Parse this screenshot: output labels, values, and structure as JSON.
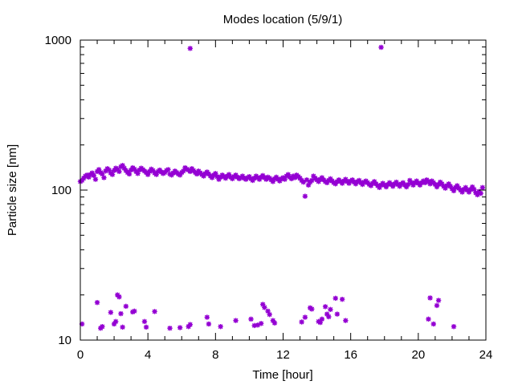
{
  "chart_data": {
    "type": "scatter",
    "title": "Modes location (5/9/1)",
    "xlabel": "Time [hour]",
    "ylabel": "Particle size [nm]",
    "xlim": [
      0,
      24
    ],
    "ylim": [
      10,
      1000
    ],
    "yscale": "log",
    "grid": false,
    "legend": "none",
    "marker_color": "#9400D3",
    "x_ticks": [
      0,
      4,
      8,
      12,
      16,
      20,
      24
    ],
    "x_tick_labels": [
      "0",
      "4",
      "8",
      "12",
      "16",
      "20",
      "24"
    ],
    "y_ticks": [
      10,
      100,
      1000
    ],
    "y_tick_labels": [
      "10",
      "100",
      "1000"
    ],
    "series": [
      {
        "points": [
          [
            0.0,
            114
          ],
          [
            0.1,
            116
          ],
          [
            0.2,
            120
          ],
          [
            0.3,
            124
          ],
          [
            0.4,
            126
          ],
          [
            0.5,
            122
          ],
          [
            0.6,
            127
          ],
          [
            0.7,
            130
          ],
          [
            0.8,
            125
          ],
          [
            0.9,
            118
          ],
          [
            1.0,
            133
          ],
          [
            1.1,
            137
          ],
          [
            1.2,
            131
          ],
          [
            1.3,
            128
          ],
          [
            1.4,
            121
          ],
          [
            1.5,
            134
          ],
          [
            1.6,
            139
          ],
          [
            1.7,
            136
          ],
          [
            1.8,
            130
          ],
          [
            1.9,
            127
          ],
          [
            2.0,
            135
          ],
          [
            2.1,
            140
          ],
          [
            2.2,
            137
          ],
          [
            2.3,
            133
          ],
          [
            2.4,
            143
          ],
          [
            2.5,
            146
          ],
          [
            2.6,
            140
          ],
          [
            2.7,
            135
          ],
          [
            2.8,
            131
          ],
          [
            2.9,
            128
          ],
          [
            3.0,
            136
          ],
          [
            3.1,
            141
          ],
          [
            3.2,
            138
          ],
          [
            3.3,
            133
          ],
          [
            3.4,
            129
          ],
          [
            3.5,
            136
          ],
          [
            3.6,
            140
          ],
          [
            3.7,
            137
          ],
          [
            3.8,
            134
          ],
          [
            3.9,
            131
          ],
          [
            4.0,
            127
          ],
          [
            4.1,
            133
          ],
          [
            4.2,
            138
          ],
          [
            4.3,
            135
          ],
          [
            4.4,
            130
          ],
          [
            4.5,
            127
          ],
          [
            4.6,
            133
          ],
          [
            4.7,
            136
          ],
          [
            4.8,
            132
          ],
          [
            4.9,
            129
          ],
          [
            5.0,
            131
          ],
          [
            5.1,
            135
          ],
          [
            5.2,
            137
          ],
          [
            5.3,
            128
          ],
          [
            5.4,
            126
          ],
          [
            5.5,
            130
          ],
          [
            5.6,
            134
          ],
          [
            5.7,
            131
          ],
          [
            5.8,
            128
          ],
          [
            5.9,
            126
          ],
          [
            6.0,
            131
          ],
          [
            6.1,
            134
          ],
          [
            6.2,
            141
          ],
          [
            6.3,
            138
          ],
          [
            6.4,
            136
          ],
          [
            6.5,
            133
          ],
          [
            6.6,
            139
          ],
          [
            6.7,
            135
          ],
          [
            6.8,
            131
          ],
          [
            6.9,
            128
          ],
          [
            7.0,
            134
          ],
          [
            7.1,
            130
          ],
          [
            7.2,
            127
          ],
          [
            7.3,
            124
          ],
          [
            7.4,
            129
          ],
          [
            7.5,
            132
          ],
          [
            7.6,
            128
          ],
          [
            7.7,
            124
          ],
          [
            7.8,
            121
          ],
          [
            7.9,
            126
          ],
          [
            8.0,
            129
          ],
          [
            8.1,
            123
          ],
          [
            8.2,
            118
          ],
          [
            8.3,
            122
          ],
          [
            8.4,
            126
          ],
          [
            8.5,
            123
          ],
          [
            8.6,
            120
          ],
          [
            8.7,
            124
          ],
          [
            8.8,
            127
          ],
          [
            8.9,
            122
          ],
          [
            9.0,
            119
          ],
          [
            9.1,
            123
          ],
          [
            9.2,
            126
          ],
          [
            9.3,
            122
          ],
          [
            9.4,
            119
          ],
          [
            9.5,
            121
          ],
          [
            9.6,
            124
          ],
          [
            9.7,
            120
          ],
          [
            9.8,
            118
          ],
          [
            9.9,
            121
          ],
          [
            10.0,
            123
          ],
          [
            10.1,
            119
          ],
          [
            10.2,
            116
          ],
          [
            10.3,
            120
          ],
          [
            10.4,
            124
          ],
          [
            10.5,
            121
          ],
          [
            10.6,
            118
          ],
          [
            10.7,
            122
          ],
          [
            10.8,
            125
          ],
          [
            10.9,
            121
          ],
          [
            11.0,
            118
          ],
          [
            11.1,
            122
          ],
          [
            11.2,
            120
          ],
          [
            11.3,
            117
          ],
          [
            11.4,
            114
          ],
          [
            11.5,
            119
          ],
          [
            11.6,
            122
          ],
          [
            11.7,
            118
          ],
          [
            11.8,
            115
          ],
          [
            11.9,
            119
          ],
          [
            12.0,
            121
          ],
          [
            12.1,
            118
          ],
          [
            12.2,
            124
          ],
          [
            12.3,
            127
          ],
          [
            12.4,
            122
          ],
          [
            12.5,
            119
          ],
          [
            12.6,
            124
          ],
          [
            12.7,
            121
          ],
          [
            12.8,
            126
          ],
          [
            12.9,
            123
          ],
          [
            13.0,
            120
          ],
          [
            13.1,
            116
          ],
          [
            13.2,
            113
          ],
          [
            13.3,
            91
          ],
          [
            13.4,
            117
          ],
          [
            13.5,
            108
          ],
          [
            13.6,
            113
          ],
          [
            13.7,
            116
          ],
          [
            13.8,
            124
          ],
          [
            13.9,
            120
          ],
          [
            14.0,
            117
          ],
          [
            14.1,
            114
          ],
          [
            14.2,
            118
          ],
          [
            14.3,
            121
          ],
          [
            14.4,
            117
          ],
          [
            14.5,
            114
          ],
          [
            14.6,
            112
          ],
          [
            14.7,
            116
          ],
          [
            14.8,
            119
          ],
          [
            14.9,
            115
          ],
          [
            15.0,
            112
          ],
          [
            15.1,
            110
          ],
          [
            15.2,
            114
          ],
          [
            15.3,
            117
          ],
          [
            15.4,
            114
          ],
          [
            15.5,
            111
          ],
          [
            15.6,
            115
          ],
          [
            15.7,
            118
          ],
          [
            15.8,
            114
          ],
          [
            15.9,
            111
          ],
          [
            16.0,
            115
          ],
          [
            16.1,
            117
          ],
          [
            16.2,
            113
          ],
          [
            16.3,
            110
          ],
          [
            16.4,
            114
          ],
          [
            16.5,
            116
          ],
          [
            16.6,
            112
          ],
          [
            16.7,
            109
          ],
          [
            16.8,
            113
          ],
          [
            16.9,
            115
          ],
          [
            17.0,
            112
          ],
          [
            17.1,
            109
          ],
          [
            17.2,
            107
          ],
          [
            17.3,
            111
          ],
          [
            17.4,
            114
          ],
          [
            17.5,
            110
          ],
          [
            17.6,
            107
          ],
          [
            17.7,
            104
          ],
          [
            17.8,
            108
          ],
          [
            17.9,
            111
          ],
          [
            18.0,
            108
          ],
          [
            18.1,
            105
          ],
          [
            18.2,
            109
          ],
          [
            18.3,
            112
          ],
          [
            18.4,
            109
          ],
          [
            18.5,
            106
          ],
          [
            18.6,
            110
          ],
          [
            18.7,
            113
          ],
          [
            18.8,
            109
          ],
          [
            18.9,
            106
          ],
          [
            19.0,
            110
          ],
          [
            19.1,
            112
          ],
          [
            19.2,
            108
          ],
          [
            19.3,
            105
          ],
          [
            19.4,
            109
          ],
          [
            19.5,
            116
          ],
          [
            19.6,
            112
          ],
          [
            19.7,
            108
          ],
          [
            19.8,
            112
          ],
          [
            19.9,
            115
          ],
          [
            20.0,
            111
          ],
          [
            20.1,
            108
          ],
          [
            20.2,
            112
          ],
          [
            20.3,
            115
          ],
          [
            20.4,
            112
          ],
          [
            20.5,
            117
          ],
          [
            20.6,
            114
          ],
          [
            20.7,
            110
          ],
          [
            20.8,
            115
          ],
          [
            20.9,
            112
          ],
          [
            21.0,
            109
          ],
          [
            21.1,
            105
          ],
          [
            21.2,
            109
          ],
          [
            21.3,
            113
          ],
          [
            21.4,
            110
          ],
          [
            21.5,
            106
          ],
          [
            21.6,
            103
          ],
          [
            21.7,
            107
          ],
          [
            21.8,
            110
          ],
          [
            21.9,
            106
          ],
          [
            22.0,
            102
          ],
          [
            22.1,
            99
          ],
          [
            22.2,
            104
          ],
          [
            22.3,
            107
          ],
          [
            22.4,
            103
          ],
          [
            22.5,
            100
          ],
          [
            22.6,
            97
          ],
          [
            22.7,
            101
          ],
          [
            22.8,
            104
          ],
          [
            22.9,
            100
          ],
          [
            23.0,
            97
          ],
          [
            23.1,
            101
          ],
          [
            23.2,
            105
          ],
          [
            23.3,
            101
          ],
          [
            23.4,
            96
          ],
          [
            23.5,
            93
          ],
          [
            23.6,
            98
          ],
          [
            23.7,
            95
          ],
          [
            23.8,
            104
          ],
          [
            6.5,
            880
          ],
          [
            17.8,
            895
          ],
          [
            0.1,
            12.8
          ],
          [
            1.0,
            17.8
          ],
          [
            1.2,
            12.0
          ],
          [
            1.3,
            12.3
          ],
          [
            1.8,
            15.3
          ],
          [
            2.0,
            12.8
          ],
          [
            2.1,
            13.3
          ],
          [
            2.2,
            20.0
          ],
          [
            2.3,
            19.4
          ],
          [
            2.4,
            15.0
          ],
          [
            2.5,
            12.2
          ],
          [
            2.7,
            16.8
          ],
          [
            3.1,
            15.4
          ],
          [
            3.2,
            15.6
          ],
          [
            3.8,
            13.3
          ],
          [
            3.9,
            12.2
          ],
          [
            4.4,
            15.5
          ],
          [
            5.3,
            12.0
          ],
          [
            5.9,
            12.1
          ],
          [
            6.4,
            12.3
          ],
          [
            6.5,
            12.7
          ],
          [
            7.5,
            14.2
          ],
          [
            7.6,
            12.8
          ],
          [
            8.3,
            12.3
          ],
          [
            9.2,
            13.5
          ],
          [
            10.1,
            13.8
          ],
          [
            10.3,
            12.5
          ],
          [
            10.5,
            12.6
          ],
          [
            10.7,
            12.9
          ],
          [
            10.8,
            17.3
          ],
          [
            10.9,
            16.5
          ],
          [
            11.1,
            15.6
          ],
          [
            11.2,
            14.8
          ],
          [
            11.4,
            13.5
          ],
          [
            11.5,
            13.0
          ],
          [
            13.1,
            13.2
          ],
          [
            13.3,
            14.2
          ],
          [
            13.6,
            16.4
          ],
          [
            13.7,
            16.1
          ],
          [
            14.1,
            13.3
          ],
          [
            14.2,
            13.1
          ],
          [
            14.3,
            13.8
          ],
          [
            14.5,
            16.7
          ],
          [
            14.6,
            14.9
          ],
          [
            14.7,
            14.3
          ],
          [
            14.8,
            16.0
          ],
          [
            15.1,
            19.0
          ],
          [
            15.2,
            14.9
          ],
          [
            15.5,
            18.7
          ],
          [
            15.7,
            13.5
          ],
          [
            20.6,
            13.8
          ],
          [
            20.7,
            19.1
          ],
          [
            20.9,
            12.8
          ],
          [
            21.1,
            17.0
          ],
          [
            21.2,
            18.4
          ],
          [
            22.1,
            12.3
          ]
        ]
      }
    ]
  }
}
